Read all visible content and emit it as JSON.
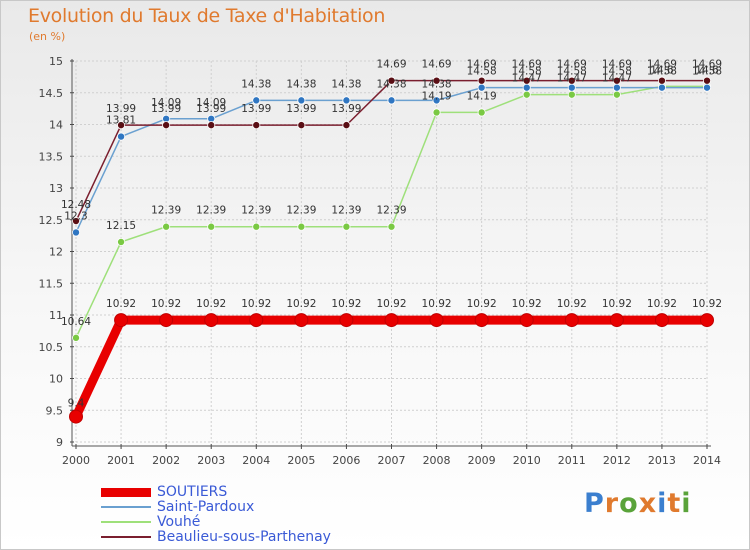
{
  "header": {
    "title": "Evolution du Taux de Taxe d'Habitation",
    "unit": "(en %)"
  },
  "brand": {
    "name": "Proxiti",
    "letter_colors": [
      "#3b7fcf",
      "#e07a2e",
      "#5aa33a",
      "#e07a2e",
      "#3b7fcf",
      "#e07a2e",
      "#5aa33a"
    ]
  },
  "chart_data": {
    "type": "line",
    "x": [
      "2000",
      "2001",
      "2002",
      "2003",
      "2004",
      "2005",
      "2006",
      "2007",
      "2008",
      "2009",
      "2010",
      "2011",
      "2012",
      "2013",
      "2014"
    ],
    "ylim": [
      9,
      15
    ],
    "yticks": [
      "9",
      "9.5",
      "10",
      "10.5",
      "11",
      "11.5",
      "12",
      "12.5",
      "13",
      "13.5",
      "14",
      "14.5",
      "15"
    ],
    "grid": true,
    "legend_position": "bottom-left",
    "series": [
      {
        "name": "SOUTIERS",
        "color": "#e80000",
        "values": [
          9.4,
          10.92,
          10.92,
          10.92,
          10.92,
          10.92,
          10.92,
          10.92,
          10.92,
          10.92,
          10.92,
          10.92,
          10.92,
          10.92,
          10.92
        ],
        "labels": [
          "9.4",
          "10.92",
          "10.92",
          "10.92",
          "10.92",
          "10.92",
          "10.92",
          "10.92",
          "10.92",
          "10.92",
          "10.92",
          "10.92",
          "10.92",
          "10.92",
          "10.92"
        ]
      },
      {
        "name": "Saint-Pardoux",
        "color": "#6aa0d0",
        "marker": "#2f76c2",
        "values": [
          12.3,
          13.81,
          14.09,
          14.09,
          14.38,
          14.38,
          14.38,
          14.38,
          14.38,
          14.58,
          14.58,
          14.58,
          14.58,
          14.58,
          14.58
        ],
        "labels": [
          "12.3",
          "13.81",
          "14.09",
          "14.09",
          "14.38",
          "14.38",
          "14.38",
          "14.38",
          "14.38",
          "14.58",
          "14.58",
          "14.58",
          "14.58",
          "14.58",
          "14.58"
        ]
      },
      {
        "name": "Vouhé",
        "color": "#9ee07a",
        "marker": "#7ac943",
        "values": [
          10.64,
          12.15,
          12.39,
          12.39,
          12.39,
          12.39,
          12.39,
          12.39,
          14.19,
          14.19,
          14.47,
          14.47,
          14.47,
          14.6,
          14.6
        ],
        "labels": [
          "10.64",
          "12.15",
          "12.39",
          "12.39",
          "12.39",
          "12.39",
          "12.39",
          "12.39",
          "14.19",
          "14.19",
          "14.47",
          "14.47",
          "14.47",
          "14.6",
          "14.6"
        ]
      },
      {
        "name": "Beaulieu-sous-Parthenay",
        "color": "#7a1e2e",
        "marker": "#5a0e14",
        "values": [
          12.48,
          13.99,
          13.99,
          13.99,
          13.99,
          13.99,
          13.99,
          14.69,
          14.69,
          14.69,
          14.69,
          14.69,
          14.69,
          14.69,
          14.69
        ],
        "labels": [
          "12.48",
          "13.99",
          "13.99",
          "13.99",
          "13.99",
          "13.99",
          "13.99",
          "14.69",
          "14.69",
          "14.69",
          "14.69",
          "14.69",
          "14.69",
          "14.69",
          "14.69"
        ]
      }
    ]
  }
}
